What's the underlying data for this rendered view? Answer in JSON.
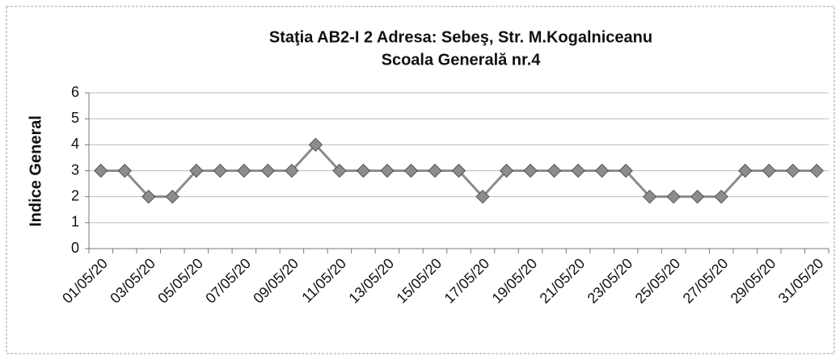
{
  "chart_data": {
    "type": "line",
    "title": [
      "Staţia AB2-I 2  Adresa: Sebeş, Str. M.Kogalniceanu",
      "Scoala Generală nr.4"
    ],
    "y_label": "Indice General",
    "categories": [
      "01/05/20",
      null,
      "03/05/20",
      null,
      "05/05/20",
      null,
      "07/05/20",
      null,
      "09/05/20",
      null,
      "11/05/20",
      null,
      "13/05/20",
      null,
      "15/05/20",
      null,
      "17/05/20",
      null,
      "19/05/20",
      null,
      "21/05/20",
      null,
      "23/05/20",
      null,
      "25/05/20",
      null,
      "27/05/20",
      null,
      "29/05/20",
      null,
      "31/05/20"
    ],
    "values": [
      3,
      3,
      2,
      2,
      3,
      3,
      3,
      3,
      3,
      4,
      3,
      3,
      3,
      3,
      3,
      3,
      2,
      3,
      3,
      3,
      3,
      3,
      3,
      2,
      2,
      2,
      2,
      3,
      3,
      3,
      3
    ],
    "color": "#8c8c8c",
    "ylim": [
      0,
      6
    ],
    "yticks": [
      0,
      1,
      2,
      3,
      4,
      5,
      6
    ],
    "grid": true
  }
}
